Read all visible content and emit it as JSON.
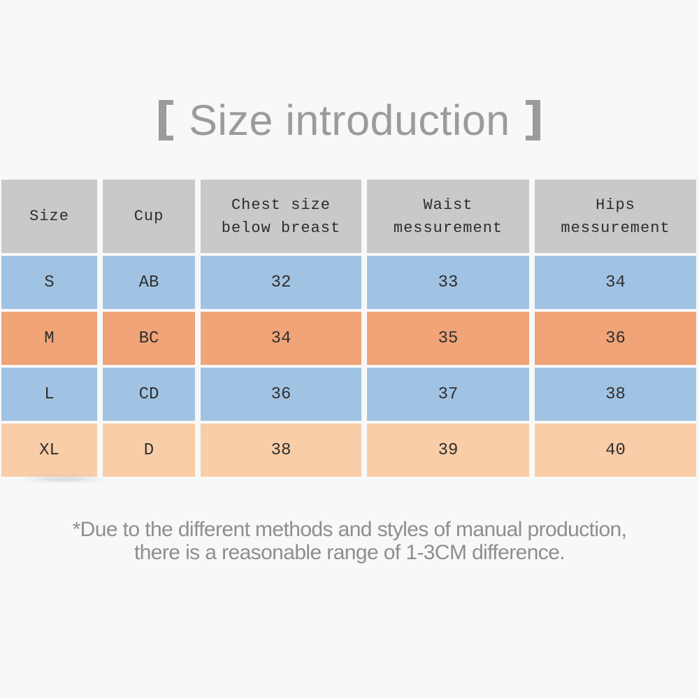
{
  "page": {
    "background_color": "#f8f8f8"
  },
  "title": {
    "text": "Size introduction",
    "left_bracket": "【",
    "right_bracket": "】",
    "color": "#9b9b9b"
  },
  "ui": {
    "header": {
      "size": "Size",
      "cup": "Cup",
      "chest": "Chest size\nbelow breast",
      "waist": "Waist\nmessurement",
      "hips": "Hips\nmessurement"
    }
  },
  "chart_data": {
    "type": "table",
    "title": "【 Size introduction 】",
    "columns": [
      "Size",
      "Cup",
      "Chest size below breast",
      "Waist messurement",
      "Hips messurement"
    ],
    "rows": [
      [
        "S",
        "AB",
        "32",
        "33",
        "34"
      ],
      [
        "M",
        "BC",
        "34",
        "35",
        "36"
      ],
      [
        "L",
        "CD",
        "36",
        "37",
        "38"
      ],
      [
        "XL",
        "D",
        "38",
        "39",
        "40"
      ]
    ],
    "row_colors": [
      "#a1c3e3",
      "#f0a478",
      "#a1c3e3",
      "#f8cda7"
    ],
    "header_color": "#cac9c8",
    "footnote": "*Due to the different methods and styles of manual production, there is a reasonable range of 1-3CM difference."
  },
  "footnote": {
    "line1": "*Due to the different methods and styles of manual production,",
    "line2": "there is a reasonable range of 1-3CM difference.",
    "color": "#8e8e8e"
  }
}
